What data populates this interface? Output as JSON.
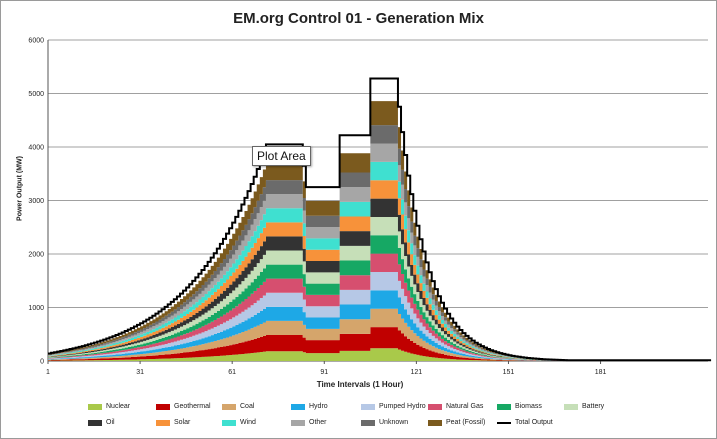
{
  "chart_data": {
    "type": "area",
    "title": "EM.org Control 01 - Generation Mix",
    "xlabel": "Time Intervals (1 Hour)",
    "ylabel": "Power Output (MW)",
    "xlim": [
      1,
      216
    ],
    "ylim": [
      0,
      6000
    ],
    "x_ticks": [
      "1",
      "31",
      "61",
      "91",
      "121",
      "151",
      "181"
    ],
    "y_ticks": [
      "0",
      "1000",
      "2000",
      "3000",
      "4000",
      "5000",
      "6000"
    ],
    "grid": true,
    "legend_position": "bottom",
    "tooltip": "Plot Area",
    "total_output_line_color": "#000000",
    "plateaus": [
      {
        "x_start": 72,
        "x_end": 83,
        "total": 4050
      },
      {
        "x_start": 85,
        "x_end": 95,
        "total": 3250
      },
      {
        "x_start": 96,
        "x_end": 105,
        "total": 4220
      },
      {
        "x_start": 106,
        "x_end": 114,
        "total": 5280
      }
    ],
    "series": [
      {
        "name": "Nuclear",
        "color": "#a9c94a",
        "share": 0.045
      },
      {
        "name": "Geothermal",
        "color": "#c00000",
        "share": 0.075
      },
      {
        "name": "Coal",
        "color": "#d5a56b",
        "share": 0.065
      },
      {
        "name": "Hydro",
        "color": "#1ea8e6",
        "share": 0.065
      },
      {
        "name": "Pumped Hydro",
        "color": "#b6c8e6",
        "share": 0.065
      },
      {
        "name": "Natural Gas",
        "color": "#d64f6f",
        "share": 0.065
      },
      {
        "name": "Biomass",
        "color": "#16a864",
        "share": 0.065
      },
      {
        "name": "Battery",
        "color": "#c6dfb8",
        "share": 0.065
      },
      {
        "name": "Oil",
        "color": "#333333",
        "share": 0.065
      },
      {
        "name": "Solar",
        "color": "#f7923a",
        "share": 0.065
      },
      {
        "name": "Wind",
        "color": "#3fe0d0",
        "share": 0.065
      },
      {
        "name": "Other",
        "color": "#a6a6a6",
        "share": 0.065
      },
      {
        "name": "Unknown",
        "color": "#6b6b6b",
        "share": 0.065
      },
      {
        "name": "Peat (Fossil)",
        "color": "#7b5a1e",
        "share": 0.085
      }
    ],
    "legend_total_label": "Total Output"
  }
}
